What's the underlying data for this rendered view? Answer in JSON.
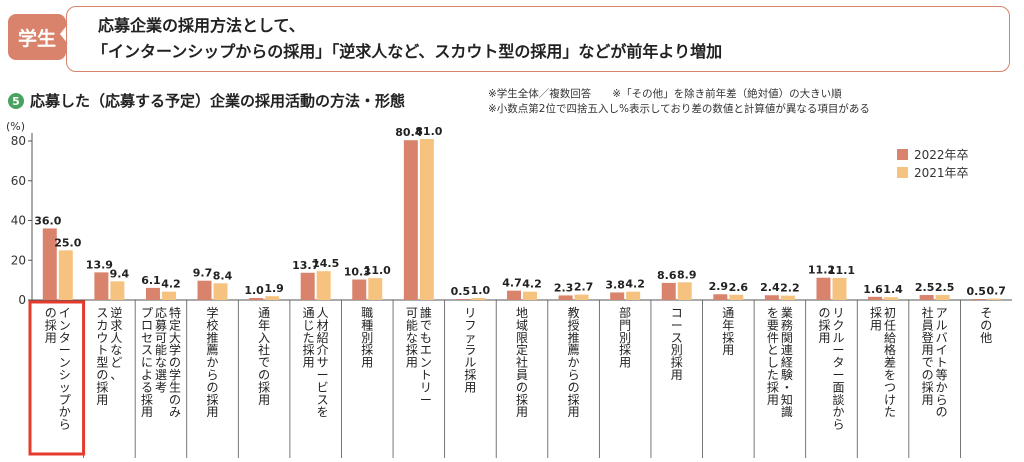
{
  "header": {
    "tag": "学生",
    "headline_line1": "応募企業の採用方法として、",
    "headline_line2": "「インターンシップからの採用」「逆求人など、スカウト型の採用」などが前年より増加"
  },
  "section": {
    "number": "5",
    "title": "応募した（応募する予定）企業の採用活動の方法・形態",
    "note1": "※学生全体／複数回答　　※「その他」を除き前年差（絶対値）の大きい順",
    "note2": "※小数点第2位で四捨五入し%表示しており差の数値と計算値が異なる項目がある"
  },
  "colors": {
    "accent": "#d9826c",
    "series_2022": "#d9826c",
    "series_2021": "#f6c27f",
    "highlight_box": "#e53b2c"
  },
  "chart_data": {
    "type": "bar",
    "unit": "(%)",
    "ylim": [
      0,
      80
    ],
    "yticks": [
      0,
      20,
      40,
      60,
      80
    ],
    "grid": false,
    "legend_position": "top-right",
    "highlighted_category": 0,
    "categories": [
      "インターンシップからの採用",
      "逆求人など、スカウト型の採用",
      "特定大学の学生のみ応募可能な選考プロセスによる採用",
      "学校推薦からの採用",
      "通年入社での採用",
      "人材紹介サービスを通じた採用",
      "職種別採用",
      "誰でもエントリー可能な採用",
      "リファラル採用",
      "地域限定社員の採用",
      "教授推薦からの採用",
      "部門別採用",
      "コース別採用",
      "通年採用",
      "業務関連経験・知識を要件とした採用",
      "リクルーター面談からの採用",
      "初任給格差をつけた採用",
      "アルバイト等からの社員登用での採用",
      "その他"
    ],
    "category_lines": [
      [
        "インターンシップから",
        "の採用"
      ],
      [
        "逆求人など、",
        "スカウト型の採用"
      ],
      [
        "特定大学の学生のみ",
        "応募可能な選考",
        "プロセスによる採用"
      ],
      [
        "学校推薦からの採用"
      ],
      [
        "通年入社での採用"
      ],
      [
        "人材紹介サービスを",
        "通じた採用"
      ],
      [
        "職種別採用"
      ],
      [
        "誰でもエントリー",
        "可能な採用"
      ],
      [
        "リファラル採用"
      ],
      [
        "地域限定社員の採用"
      ],
      [
        "教授推薦からの採用"
      ],
      [
        "部門別採用"
      ],
      [
        "コース別採用"
      ],
      [
        "通年採用"
      ],
      [
        "業務関連経験・知識",
        "を要件とした採用"
      ],
      [
        "リクルーター面談から",
        "の採用"
      ],
      [
        "初任給格差をつけた",
        "採用"
      ],
      [
        "アルバイト等からの",
        "社員登用での採用"
      ],
      [
        "その他"
      ]
    ],
    "series": [
      {
        "name": "2022年卒",
        "color": "#d9826c",
        "values": [
          36.0,
          13.9,
          6.1,
          9.7,
          1.0,
          13.7,
          10.3,
          80.4,
          0.5,
          4.7,
          2.3,
          3.8,
          8.6,
          2.9,
          2.4,
          11.2,
          1.6,
          2.5,
          0.5
        ]
      },
      {
        "name": "2021年卒",
        "color": "#f6c27f",
        "values": [
          25.0,
          9.4,
          4.2,
          8.4,
          1.9,
          14.5,
          11.0,
          81.0,
          1.0,
          4.2,
          2.7,
          4.2,
          8.9,
          2.6,
          2.2,
          11.1,
          1.4,
          2.5,
          0.7
        ]
      }
    ]
  }
}
